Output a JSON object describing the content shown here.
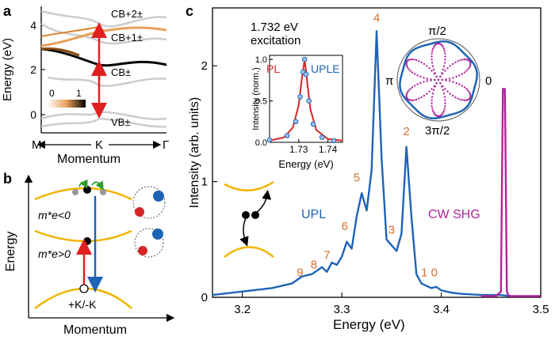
{
  "panel_a": {
    "label": "a",
    "ylabel": "Energy (eV)",
    "yticks": [
      "0",
      "2",
      "4"
    ],
    "xticks": [
      "M",
      "K",
      "Γ"
    ],
    "xlabel": "Momentum",
    "bands": [
      "CB+2±",
      "CB+1±",
      "CB±",
      "VB±"
    ],
    "colorbar": {
      "min": "0",
      "max": "1"
    },
    "colors": {
      "arrow": "#e02020",
      "band_high": "#000000",
      "band_low": "#d9822b",
      "band_bg": "#cccccc"
    }
  },
  "panel_b": {
    "label": "b",
    "ylabel": "Energy",
    "xlabel": "Momentum",
    "mass_neg": "m*e<0",
    "mass_pos": "m*e>0",
    "valley": "+K/-K",
    "colors": {
      "band": "#f0b400",
      "up_arrow": "#e02020",
      "down_arrow": "#1f63b5",
      "curl": "#2aa02a"
    }
  },
  "panel_c": {
    "label": "c",
    "legend": "1.732 eV excitation",
    "legend_line1": "1.732 eV",
    "legend_line2": "excitation",
    "upl_label": "UPL",
    "shg_label": "CW SHG",
    "ylabel": "Intensity (arb. units)",
    "xlabel": "Energy (eV)",
    "xticks": [
      "3.2",
      "3.3",
      "3.4",
      "3.5"
    ],
    "yticks": [
      "0",
      "1",
      "2"
    ],
    "peak_labels": [
      "9",
      "8",
      "7",
      "6",
      "5",
      "4",
      "3",
      "2",
      "1",
      "0"
    ],
    "colors": {
      "upl": "#1f63b5",
      "shg": "#b0249c",
      "peak_label": "#d56f2e"
    },
    "inset": {
      "pl_label": "PL",
      "uple_label": "UPLE",
      "ylabel": "Intensity (norm.)",
      "xlabel": "Energy (eV)",
      "xticks": [
        "1.73",
        "1.74"
      ],
      "yticks": [
        "0.0",
        "0.5",
        "1.0"
      ],
      "colors": {
        "pl": "#d62728",
        "uple": "#1f63b5"
      }
    },
    "polar": {
      "labels": [
        "π/2",
        "π",
        "0",
        "3π/2"
      ]
    }
  },
  "chart_data": [
    {
      "type": "line",
      "xlabel": "Energy (eV)",
      "ylabel": "Intensity (arb. units)",
      "xlim": [
        3.17,
        3.5
      ],
      "ylim": [
        0,
        2.5
      ],
      "series": [
        {
          "name": "UPL",
          "x": [
            3.17,
            3.2,
            3.23,
            3.25,
            3.26,
            3.27,
            3.28,
            3.285,
            3.29,
            3.295,
            3.3,
            3.305,
            3.31,
            3.315,
            3.32,
            3.325,
            3.33,
            3.335,
            3.34,
            3.345,
            3.35,
            3.355,
            3.36,
            3.365,
            3.37,
            3.375,
            3.38,
            3.385,
            3.39,
            3.395,
            3.4,
            3.41,
            3.42,
            3.44,
            3.46,
            3.47
          ],
          "y": [
            0.02,
            0.05,
            0.08,
            0.12,
            0.18,
            0.2,
            0.26,
            0.22,
            0.3,
            0.28,
            0.35,
            0.48,
            0.42,
            0.7,
            0.9,
            0.75,
            1.1,
            2.3,
            1.2,
            0.5,
            0.45,
            0.4,
            0.55,
            1.3,
            0.7,
            0.2,
            0.12,
            0.1,
            0.08,
            0.09,
            0.06,
            0.04,
            0.03,
            0.02,
            0.02,
            0.01
          ]
        },
        {
          "name": "CW SHG",
          "x": [
            3.44,
            3.455,
            3.46,
            3.462,
            3.464,
            3.466,
            3.468,
            3.475,
            3.5
          ],
          "y": [
            0.01,
            0.01,
            0.05,
            1.8,
            1.8,
            0.05,
            0.01,
            0.01,
            0.01
          ]
        }
      ]
    },
    {
      "type": "line",
      "xlabel": "Energy (eV)",
      "ylabel": "Intensity (norm.)",
      "xlim": [
        1.72,
        1.745
      ],
      "ylim": [
        0,
        1.05
      ],
      "series": [
        {
          "name": "PL",
          "x": [
            1.72,
            1.725,
            1.728,
            1.73,
            1.731,
            1.732,
            1.733,
            1.734,
            1.736,
            1.74,
            1.745
          ],
          "y": [
            0.02,
            0.06,
            0.18,
            0.45,
            0.75,
            1.0,
            0.7,
            0.4,
            0.15,
            0.04,
            0.02
          ]
        },
        {
          "name": "UPLE",
          "x": [
            1.72,
            1.726,
            1.729,
            1.7305,
            1.7315,
            1.732,
            1.7325,
            1.7335,
            1.735,
            1.738,
            1.742
          ],
          "y": [
            0.03,
            0.08,
            0.25,
            0.55,
            0.85,
            1.0,
            0.82,
            0.5,
            0.22,
            0.06,
            0.02
          ]
        }
      ]
    }
  ]
}
